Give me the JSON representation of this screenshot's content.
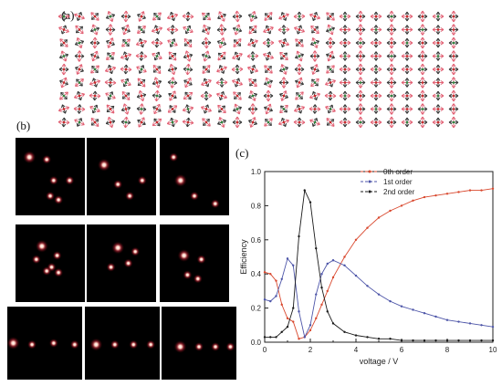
{
  "panels": {
    "a": "(a)",
    "b": "(b)",
    "c": "(c)"
  },
  "arrow_grids": [
    {
      "name": "grid-1",
      "color": "#e05a6e"
    },
    {
      "name": "grid-2",
      "color": "#e05a6e"
    },
    {
      "name": "grid-3",
      "color": "#e05a6e"
    }
  ],
  "diffraction": {
    "rows": [
      {
        "name": "row-1",
        "spots": [
          [
            [
              0.2,
              0.25
            ],
            [
              0.45,
              0.28
            ],
            [
              0.55,
              0.55
            ],
            [
              0.78,
              0.55
            ],
            [
              0.5,
              0.75
            ],
            [
              0.62,
              0.8
            ]
          ],
          [
            [
              0.25,
              0.35
            ],
            [
              0.45,
              0.6
            ],
            [
              0.62,
              0.75
            ],
            [
              0.8,
              0.55
            ]
          ],
          [
            [
              0.3,
              0.55
            ],
            [
              0.5,
              0.75
            ],
            [
              0.8,
              0.85
            ],
            [
              0.2,
              0.25
            ]
          ]
        ]
      },
      {
        "name": "row-2",
        "spots": [
          [
            [
              0.38,
              0.28
            ],
            [
              0.6,
              0.4
            ],
            [
              0.3,
              0.45
            ],
            [
              0.52,
              0.55
            ],
            [
              0.62,
              0.62
            ],
            [
              0.45,
              0.6
            ]
          ],
          [
            [
              0.45,
              0.3
            ],
            [
              0.7,
              0.35
            ],
            [
              0.6,
              0.5
            ],
            [
              0.35,
              0.55
            ]
          ],
          [
            [
              0.35,
              0.4
            ],
            [
              0.6,
              0.45
            ],
            [
              0.55,
              0.7
            ],
            [
              0.4,
              0.65
            ]
          ]
        ]
      },
      {
        "name": "row-3",
        "spots": [
          [
            [
              0.08,
              0.5
            ],
            [
              0.33,
              0.52
            ],
            [
              0.62,
              0.5
            ],
            [
              0.9,
              0.52
            ]
          ],
          [
            [
              0.15,
              0.52
            ],
            [
              0.4,
              0.52
            ],
            [
              0.65,
              0.52
            ],
            [
              0.88,
              0.52
            ]
          ],
          [
            [
              0.25,
              0.55
            ],
            [
              0.5,
              0.55
            ],
            [
              0.72,
              0.55
            ],
            [
              0.92,
              0.55
            ]
          ]
        ]
      }
    ]
  },
  "chart_data": {
    "type": "line",
    "title": "",
    "xlabel": "voltage / V",
    "ylabel": "Efficiency",
    "xlim": [
      0,
      10
    ],
    "ylim": [
      0,
      1.0
    ],
    "xticks": [
      "0",
      "2",
      "4",
      "6",
      "8",
      "10"
    ],
    "yticks": [
      "0.0",
      "0.2",
      "0.4",
      "0.6",
      "0.8",
      "1.0"
    ],
    "legend_position": "top-right",
    "series": [
      {
        "name": "0th order",
        "color": "#d9492f",
        "x": [
          0,
          0.25,
          0.5,
          0.75,
          1.0,
          1.25,
          1.5,
          1.75,
          2.0,
          2.25,
          2.5,
          2.75,
          3.0,
          3.5,
          4.0,
          4.5,
          5.0,
          5.5,
          6.0,
          6.5,
          7.0,
          7.5,
          8.0,
          8.5,
          9.0,
          9.5,
          10.0
        ],
        "y": [
          0.41,
          0.4,
          0.36,
          0.22,
          0.14,
          0.12,
          0.02,
          0.03,
          0.07,
          0.14,
          0.22,
          0.3,
          0.38,
          0.5,
          0.6,
          0.67,
          0.73,
          0.77,
          0.8,
          0.83,
          0.85,
          0.86,
          0.87,
          0.88,
          0.89,
          0.89,
          0.9
        ]
      },
      {
        "name": "1st order",
        "color": "#4d55a8",
        "x": [
          0,
          0.25,
          0.5,
          0.75,
          1.0,
          1.25,
          1.5,
          1.75,
          2.0,
          2.25,
          2.5,
          2.75,
          3.0,
          3.5,
          4.0,
          4.5,
          5.0,
          5.5,
          6.0,
          6.5,
          7.0,
          7.5,
          8.0,
          8.5,
          9.0,
          9.5,
          10.0
        ],
        "y": [
          0.25,
          0.24,
          0.27,
          0.37,
          0.49,
          0.45,
          0.18,
          0.03,
          0.1,
          0.28,
          0.4,
          0.46,
          0.48,
          0.45,
          0.39,
          0.33,
          0.28,
          0.24,
          0.21,
          0.19,
          0.17,
          0.15,
          0.13,
          0.12,
          0.11,
          0.1,
          0.09
        ]
      },
      {
        "name": "2nd order",
        "color": "#1a1a1a",
        "x": [
          0,
          0.25,
          0.5,
          0.75,
          1.0,
          1.25,
          1.5,
          1.75,
          2.0,
          2.25,
          2.5,
          2.75,
          3.0,
          3.5,
          4.0,
          4.5,
          5.0,
          5.5,
          6.0,
          6.5,
          7.0,
          7.5,
          8.0,
          8.5,
          9.0,
          9.5,
          10.0
        ],
        "y": [
          0.03,
          0.03,
          0.03,
          0.06,
          0.09,
          0.2,
          0.62,
          0.89,
          0.82,
          0.55,
          0.32,
          0.18,
          0.11,
          0.06,
          0.04,
          0.03,
          0.02,
          0.02,
          0.01,
          0.01,
          0.01,
          0.01,
          0.01,
          0.01,
          0.01,
          0.01,
          0.01
        ]
      }
    ]
  }
}
